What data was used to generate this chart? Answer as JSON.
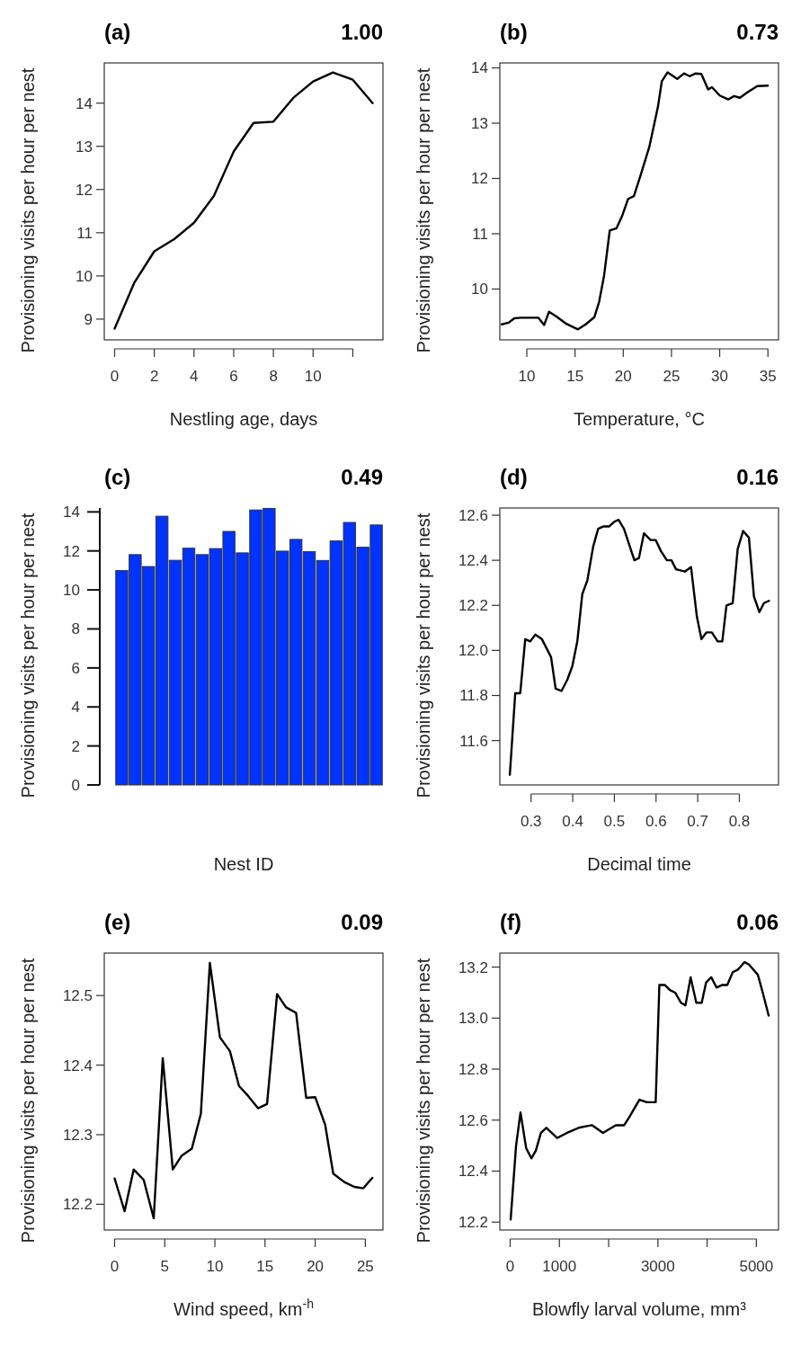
{
  "chart_data": [
    {
      "type": "line",
      "title": "(a)",
      "annotations": [
        "1.00"
      ],
      "xlabel": "Nestling age, days",
      "ylabel": "Provisioning visits per hour per nest",
      "xlim": [
        -0.52,
        13.52
      ],
      "ylim": [
        8.52,
        14.93
      ],
      "xticks": [
        0,
        2,
        4,
        6,
        8,
        10,
        {
          "value": 12,
          "label": null
        }
      ],
      "yticks": [
        9,
        10,
        11,
        12,
        13,
        14
      ],
      "x": [
        0,
        1,
        2,
        3,
        4,
        5,
        6,
        7,
        8,
        9,
        10,
        11,
        12,
        13
      ],
      "series": [
        {
          "color": "#000000",
          "values": [
            8.78,
            9.85,
            10.57,
            10.85,
            11.23,
            11.85,
            12.88,
            13.54,
            13.57,
            14.12,
            14.5,
            14.71,
            14.54,
            14.0
          ]
        }
      ]
    },
    {
      "type": "line",
      "title": "(b)",
      "annotations": [
        "0.73"
      ],
      "xlabel": "Temperature, °C",
      "ylabel": "Provisioning visits per hour per nest",
      "xlim": [
        7.2,
        36.1
      ],
      "ylim": [
        9.08,
        14.09
      ],
      "xticks": [
        10,
        15,
        20,
        25,
        30,
        35
      ],
      "yticks": [
        10,
        11,
        12,
        13,
        14
      ],
      "x": [
        7.4,
        8.1,
        8.7,
        9.4,
        11.2,
        11.8,
        12.3,
        13.1,
        14.1,
        15.3,
        16.1,
        17.0,
        17.5,
        18.0,
        18.6,
        19.3,
        19.9,
        20.5,
        21.1,
        21.8,
        22.7,
        23.6,
        24.0,
        24.6,
        25.6,
        26.3,
        26.9,
        27.5,
        28.1,
        28.8,
        29.2,
        30.0,
        30.9,
        31.5,
        32.1,
        32.9,
        33.9,
        35.0
      ],
      "series": [
        {
          "color": "#000000",
          "values": [
            9.36,
            9.39,
            9.47,
            9.48,
            9.48,
            9.35,
            9.59,
            9.5,
            9.37,
            9.27,
            9.36,
            9.49,
            9.77,
            10.23,
            11.06,
            11.1,
            11.33,
            11.63,
            11.68,
            12.06,
            12.57,
            13.3,
            13.76,
            13.92,
            13.8,
            13.9,
            13.85,
            13.9,
            13.89,
            13.61,
            13.65,
            13.5,
            13.43,
            13.49,
            13.46,
            13.56,
            13.67,
            13.68
          ]
        }
      ]
    },
    {
      "type": "bar",
      "title": "(c)",
      "annotations": [
        "0.49"
      ],
      "xlabel": "Nest ID",
      "ylabel": "Provisioning visits per hour per nest",
      "tick_labels": "y",
      "ylim": [
        0,
        14.2
      ],
      "yticks": [
        0,
        2,
        4,
        6,
        8,
        10,
        12,
        14
      ],
      "categories": [
        null,
        null,
        null,
        null,
        null,
        null,
        null,
        null,
        null,
        null,
        null,
        null,
        null,
        null,
        null,
        null,
        null,
        null,
        null,
        null
      ],
      "color": "#0033ff",
      "values": [
        10.99,
        11.81,
        11.2,
        13.78,
        11.52,
        12.14,
        11.81,
        12.12,
        13.0,
        11.9,
        14.1,
        14.18,
        11.99,
        12.59,
        11.96,
        11.51,
        12.51,
        13.46,
        12.19,
        13.33
      ]
    },
    {
      "type": "line",
      "title": "(d)",
      "annotations": [
        "0.16"
      ],
      "xlabel": "Decimal time",
      "ylabel": "Provisioning visits per hour per nest",
      "xlim": [
        0.225,
        0.894
      ],
      "ylim": [
        11.403,
        12.632
      ],
      "xticks": [
        0.3,
        0.4,
        0.5,
        0.6,
        0.7,
        0.8
      ],
      "yticks": [
        11.6,
        11.8,
        {
          "value": 12,
          "label": "12.0"
        },
        12.2,
        12.4,
        12.6
      ],
      "x": [
        0.249,
        0.262,
        0.274,
        0.286,
        0.298,
        0.31,
        0.326,
        0.348,
        0.359,
        0.373,
        0.387,
        0.399,
        0.411,
        0.423,
        0.435,
        0.449,
        0.461,
        0.473,
        0.487,
        0.499,
        0.51,
        0.523,
        0.548,
        0.559,
        0.571,
        0.587,
        0.599,
        0.612,
        0.626,
        0.637,
        0.648,
        0.669,
        0.684,
        0.698,
        0.709,
        0.721,
        0.734,
        0.748,
        0.759,
        0.769,
        0.784,
        0.796,
        0.809,
        0.823,
        0.835,
        0.848,
        0.859,
        0.871
      ],
      "series": [
        {
          "color": "#000000",
          "values": [
            11.448,
            11.81,
            11.81,
            12.05,
            12.04,
            12.07,
            12.05,
            11.97,
            11.83,
            11.82,
            11.87,
            11.93,
            12.04,
            12.25,
            12.31,
            12.46,
            12.54,
            12.55,
            12.55,
            12.57,
            12.58,
            12.54,
            12.4,
            12.41,
            12.52,
            12.49,
            12.49,
            12.44,
            12.4,
            12.4,
            12.36,
            12.35,
            12.37,
            12.15,
            12.05,
            12.08,
            12.08,
            12.04,
            12.04,
            12.2,
            12.21,
            12.45,
            12.53,
            12.5,
            12.24,
            12.17,
            12.21,
            12.22
          ]
        }
      ]
    },
    {
      "type": "line",
      "title": "(e)",
      "annotations": [
        "0.09"
      ],
      "xlabel": "Wind speed, km$^{-h}$",
      "ylabel": "Provisioning visits per hour per nest",
      "xlim": [
        -1.03,
        26.76
      ],
      "ylim": [
        12.163,
        12.561
      ],
      "xticks": [
        0,
        5,
        10,
        15,
        20,
        25
      ],
      "yticks": [
        12.2,
        12.3,
        12.4,
        12.5
      ],
      "x": [
        0,
        1.0,
        1.9,
        2.9,
        3.9,
        4.8,
        5.8,
        6.7,
        7.7,
        8.6,
        9.5,
        10.5,
        11.5,
        12.4,
        13.3,
        14.3,
        15.2,
        16.2,
        17.1,
        18.1,
        19.1,
        20.0,
        21.0,
        21.8,
        22.9,
        23.9,
        24.8,
        25.7
      ],
      "series": [
        {
          "color": "#000000",
          "values": [
            12.237,
            12.19,
            12.25,
            12.235,
            12.18,
            12.41,
            12.25,
            12.27,
            12.28,
            12.33,
            12.547,
            12.44,
            12.42,
            12.37,
            12.356,
            12.338,
            12.344,
            12.502,
            12.483,
            12.475,
            12.353,
            12.354,
            12.314,
            12.244,
            12.232,
            12.225,
            12.223,
            12.238
          ]
        }
      ]
    },
    {
      "type": "line",
      "title": "(f)",
      "annotations": [
        "0.06"
      ],
      "xlabel": "Blowfly larval volume, mm³",
      "ylabel": "Provisioning visits per hour per nest",
      "xlim": [
        -210,
        5450
      ],
      "ylim": [
        12.169,
        13.255
      ],
      "xticks": [
        0,
        1000,
        {
          "value": 2000,
          "label": null
        },
        3000,
        {
          "value": 4000,
          "label": null
        },
        5000
      ],
      "yticks": [
        12.2,
        12.4,
        12.6,
        12.8,
        {
          "value": 13,
          "label": "13.0"
        },
        13.2
      ],
      "x": [
        10,
        120,
        210,
        325,
        430,
        520,
        625,
        735,
        955,
        1155,
        1275,
        1395,
        1515,
        1665,
        1885,
        2145,
        2315,
        2415,
        2625,
        2775,
        2955,
        3030,
        3140,
        3245,
        3350,
        3470,
        3560,
        3665,
        3780,
        3890,
        3980,
        4085,
        4190,
        4310,
        4410,
        4520,
        4625,
        4760,
        4850,
        5030,
        5130,
        5250
      ],
      "series": [
        {
          "color": "#000000",
          "values": [
            12.21,
            12.5,
            12.63,
            12.49,
            12.45,
            12.48,
            12.55,
            12.57,
            12.53,
            12.55,
            12.56,
            12.57,
            12.575,
            12.58,
            12.55,
            12.58,
            12.58,
            12.61,
            12.68,
            12.67,
            12.67,
            13.13,
            13.13,
            13.11,
            13.1,
            13.06,
            13.05,
            13.16,
            13.06,
            13.06,
            13.14,
            13.16,
            13.12,
            13.13,
            13.13,
            13.18,
            13.19,
            13.22,
            13.21,
            13.17,
            13.1,
            13.01
          ]
        }
      ]
    }
  ]
}
